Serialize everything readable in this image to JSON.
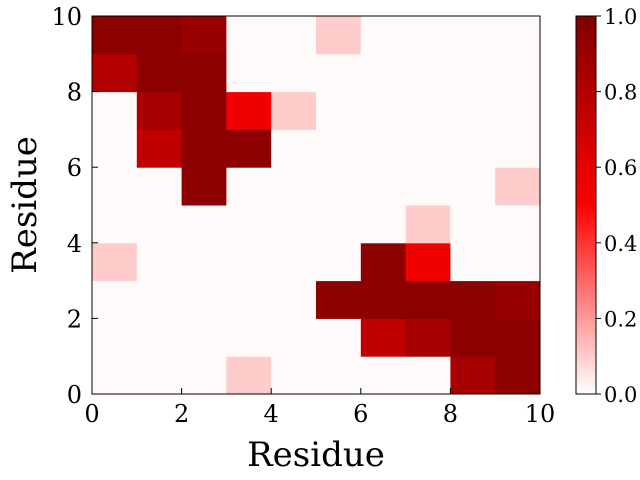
{
  "chart_data": {
    "type": "heatmap",
    "title": "",
    "xlabel": "Residue",
    "ylabel": "Residue",
    "xlim": [
      0,
      10
    ],
    "ylim": [
      0,
      10
    ],
    "x_ticks": [
      0,
      2,
      4,
      6,
      8,
      10
    ],
    "y_ticks": [
      0,
      2,
      4,
      6,
      8,
      10
    ],
    "colorbar": {
      "range": [
        0.0,
        1.0
      ],
      "ticks": [
        "0.0",
        "0.2",
        "0.4",
        "0.6",
        "0.8",
        "1.0"
      ],
      "colormap": [
        "#ffffff",
        "#ff0000",
        "#800000"
      ]
    },
    "rows_bottom_to_top": [
      [
        0.0,
        0.0,
        0.0,
        0.1,
        0.0,
        0.0,
        0.0,
        0.0,
        0.85,
        0.95
      ],
      [
        0.0,
        0.0,
        0.0,
        0.0,
        0.0,
        0.0,
        0.75,
        0.85,
        0.95,
        0.95
      ],
      [
        0.0,
        0.0,
        0.0,
        0.0,
        0.0,
        0.95,
        0.95,
        0.95,
        0.95,
        0.9
      ],
      [
        0.1,
        0.0,
        0.0,
        0.0,
        0.0,
        0.0,
        0.95,
        0.55,
        0.0,
        0.0
      ],
      [
        0.0,
        0.0,
        0.0,
        0.0,
        0.0,
        0.0,
        0.0,
        0.1,
        0.0,
        0.0
      ],
      [
        0.0,
        0.0,
        0.95,
        0.0,
        0.0,
        0.0,
        0.0,
        0.0,
        0.0,
        0.1
      ],
      [
        0.0,
        0.75,
        0.95,
        0.95,
        0.0,
        0.0,
        0.0,
        0.0,
        0.0,
        0.0
      ],
      [
        0.0,
        0.85,
        0.95,
        0.55,
        0.1,
        0.0,
        0.0,
        0.0,
        0.0,
        0.0
      ],
      [
        0.8,
        0.95,
        0.95,
        0.0,
        0.0,
        0.0,
        0.0,
        0.0,
        0.0,
        0.0
      ],
      [
        0.95,
        0.95,
        0.9,
        0.0,
        0.0,
        0.1,
        0.0,
        0.0,
        0.0,
        0.0
      ]
    ]
  }
}
